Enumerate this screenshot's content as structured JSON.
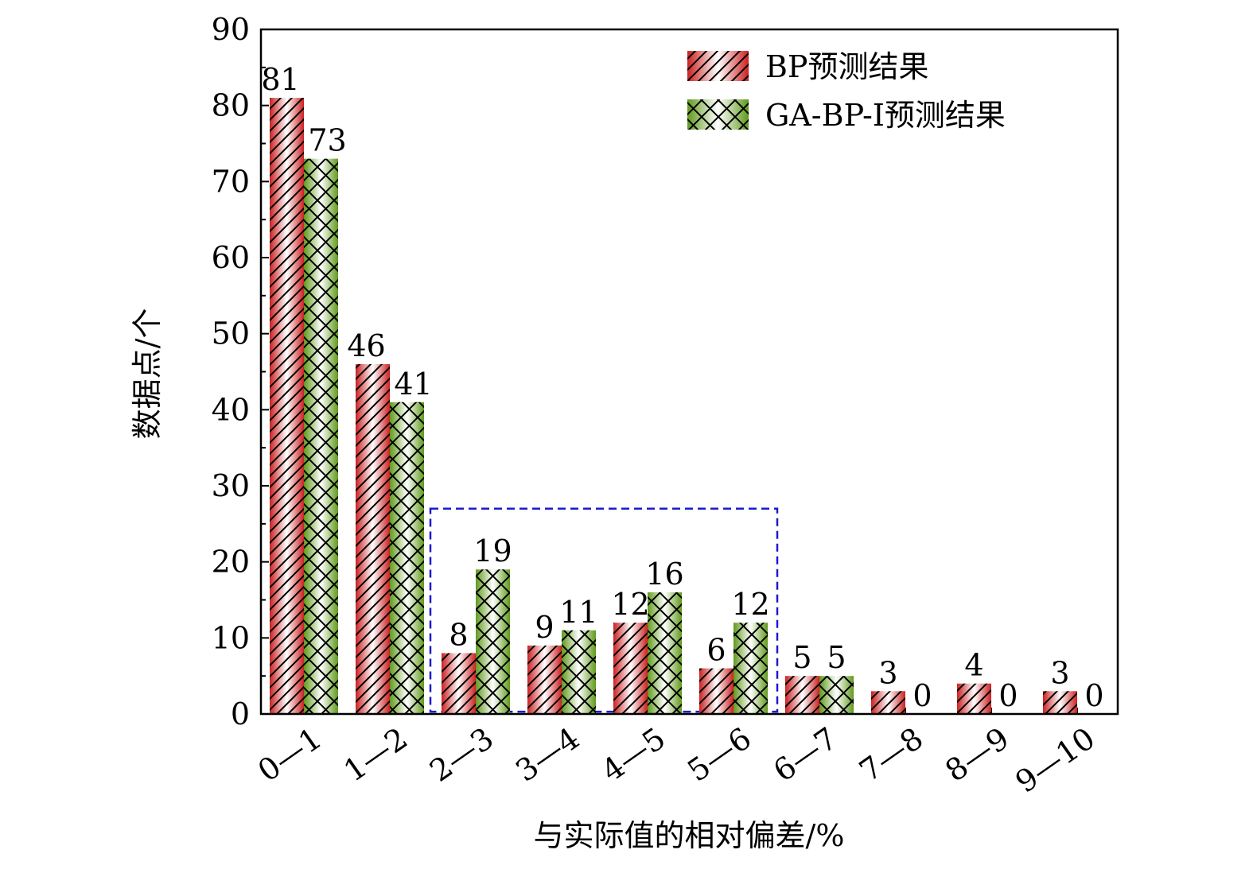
{
  "chart_data": {
    "type": "bar",
    "title": "",
    "xlabel": "与实际值的相对偏差/%",
    "ylabel": "数据点/个",
    "ylim": [
      0,
      90
    ],
    "yticks": [
      "0",
      "10",
      "20",
      "30",
      "40",
      "50",
      "60",
      "70",
      "80",
      "90"
    ],
    "categories": [
      "0—1",
      "1—2",
      "2—3",
      "3—4",
      "4—5",
      "5—6",
      "6—7",
      "7—8",
      "8—9",
      "9—10"
    ],
    "series": [
      {
        "name": "BP预测结果",
        "values": [
          81,
          46,
          8,
          9,
          12,
          6,
          5,
          3,
          4,
          3
        ],
        "labels": [
          "81",
          "46",
          "8",
          "9",
          "12",
          "6",
          "5",
          "3",
          "4",
          "3"
        ],
        "color": "#d42a2a",
        "pattern": "diagonal"
      },
      {
        "name": "GA-BP-I预测结果",
        "values": [
          73,
          41,
          19,
          11,
          16,
          12,
          5,
          0,
          0,
          0
        ],
        "labels": [
          "73",
          "41",
          "19",
          "11",
          "16",
          "12",
          "5",
          "0",
          "0",
          "0"
        ],
        "color": "#6aa320",
        "pattern": "crosshatch"
      }
    ],
    "legend": "top-right",
    "highlight_box": {
      "from_category": "2—3",
      "to_category": "5—6",
      "y_range": [
        0,
        27
      ],
      "color": "#1a1acc"
    },
    "grid": false
  }
}
